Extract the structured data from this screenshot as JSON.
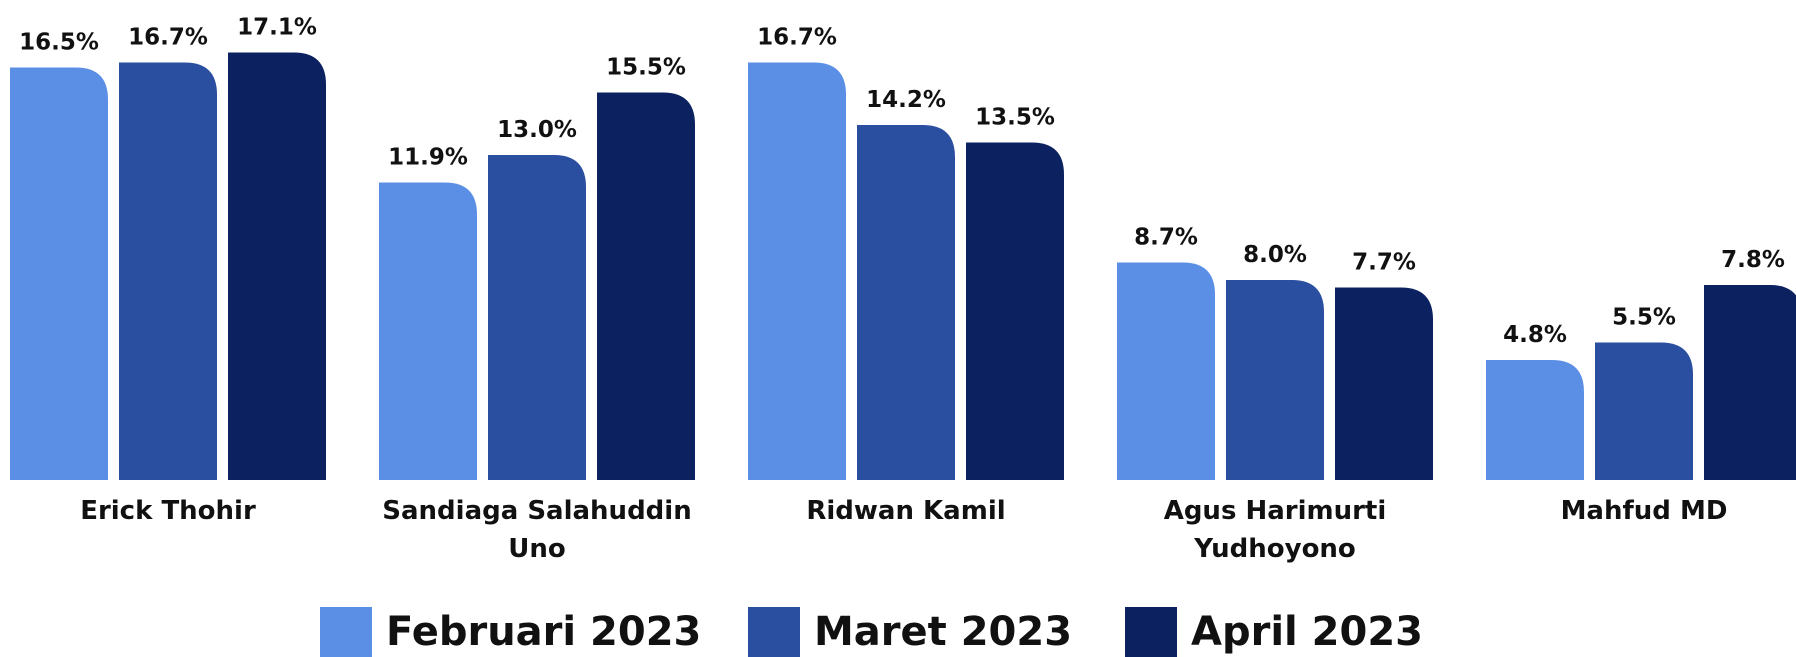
{
  "chart_data": {
    "type": "bar",
    "categories": [
      "Erick Thohir",
      "Sandiaga Salahuddin Uno",
      "Ridwan Kamil",
      "Agus Harimurti Yudhoyono",
      "Mahfud MD"
    ],
    "series": [
      {
        "name": "Februari 2023",
        "color": "#5b8fe6",
        "values": [
          16.5,
          11.9,
          16.7,
          8.7,
          4.8
        ],
        "value_labels": [
          "16.5%",
          "11.9%",
          "16.7%",
          "8.7%",
          "4.8%"
        ]
      },
      {
        "name": "Maret 2023",
        "color": "#2a4fa0",
        "values": [
          16.7,
          13.0,
          14.2,
          8.0,
          5.5
        ],
        "value_labels": [
          "16.7%",
          "13.0%",
          "14.2%",
          "8.0%",
          "5.5%"
        ]
      },
      {
        "name": "April 2023",
        "color": "#0c2260",
        "values": [
          17.1,
          15.5,
          13.5,
          7.7,
          7.8
        ],
        "value_labels": [
          "17.1%",
          "15.5%",
          "13.5%",
          "7.7%",
          "7.8%"
        ]
      }
    ]
  }
}
